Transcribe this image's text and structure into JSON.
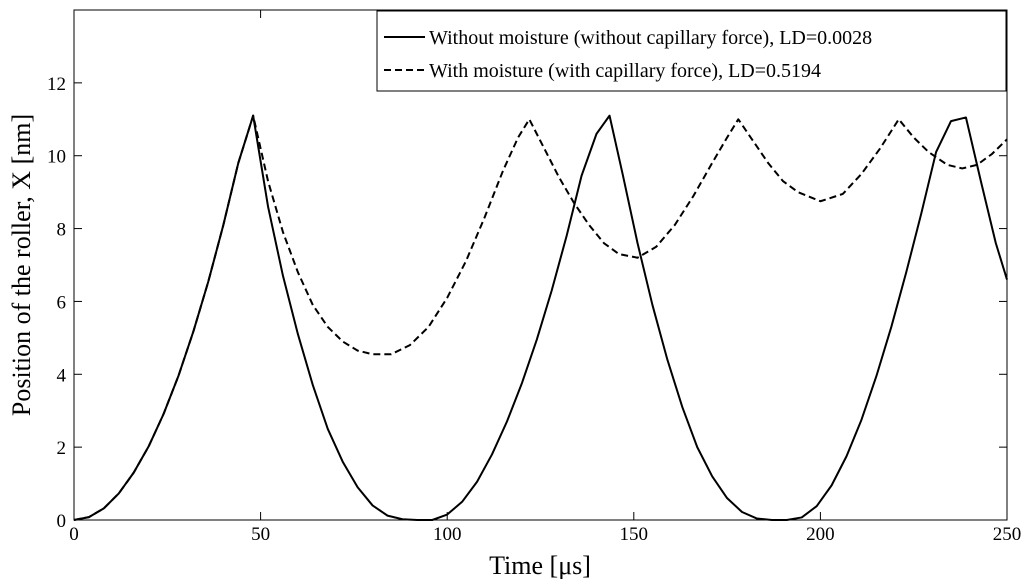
{
  "chart_data": {
    "type": "line",
    "xlabel": "Time [μs]",
    "ylabel": "Position of the roller, X [nm]",
    "xlim": [
      0,
      250
    ],
    "ylim": [
      0,
      14
    ],
    "xticks": [
      "0",
      "50",
      "100",
      "150",
      "200",
      "250"
    ],
    "yticks": [
      "0",
      "2",
      "4",
      "6",
      "8",
      "10",
      "12"
    ],
    "grid": false,
    "legend_position": "top-right",
    "series": [
      {
        "name": "Without moisture (without capillary force), LD=0.0028",
        "style": "solid",
        "color": "#000000",
        "x": [
          0,
          4,
          8,
          12,
          16,
          20,
          24,
          28,
          32,
          36,
          40,
          44,
          48,
          52,
          56,
          60,
          64,
          68,
          72,
          76,
          80,
          84,
          88,
          92,
          96,
          100,
          104,
          108,
          112,
          116,
          120,
          124,
          128,
          132,
          136,
          140,
          143.5,
          147,
          151,
          155,
          159,
          163,
          167,
          171,
          175,
          179,
          183,
          187,
          191,
          195,
          199,
          203,
          207,
          211,
          215,
          219,
          223,
          227,
          231,
          235,
          239,
          243,
          247,
          250
        ],
        "y": [
          0.0,
          0.08,
          0.32,
          0.73,
          1.3,
          2.02,
          2.91,
          3.96,
          5.18,
          6.55,
          8.09,
          9.79,
          11.1,
          8.6,
          6.7,
          5.1,
          3.7,
          2.5,
          1.6,
          0.9,
          0.4,
          0.12,
          0.02,
          0.0,
          0.0,
          0.15,
          0.5,
          1.05,
          1.8,
          2.7,
          3.75,
          4.95,
          6.3,
          7.8,
          9.45,
          10.6,
          11.1,
          9.5,
          7.6,
          5.9,
          4.4,
          3.1,
          2.0,
          1.2,
          0.6,
          0.22,
          0.04,
          0.0,
          0.0,
          0.07,
          0.38,
          0.95,
          1.75,
          2.75,
          3.95,
          5.3,
          6.8,
          8.4,
          10.1,
          10.95,
          11.05,
          9.3,
          7.6,
          6.6
        ]
      },
      {
        "name": "With moisture (with capillary force), LD=0.5194",
        "style": "dashed",
        "color": "#000000",
        "x": [
          0,
          4,
          8,
          12,
          16,
          20,
          24,
          28,
          32,
          36,
          40,
          44,
          48,
          52,
          56,
          60,
          64,
          68,
          72,
          76,
          80,
          85,
          90,
          95,
          100,
          105,
          110,
          115,
          119,
          122,
          126,
          130,
          134,
          138,
          142,
          146,
          151,
          156,
          161,
          166,
          171,
          175,
          178,
          182,
          186,
          190,
          194,
          200,
          206,
          211,
          216,
          221,
          225,
          229,
          234,
          238,
          242,
          246,
          250
        ],
        "y": [
          0.0,
          0.08,
          0.32,
          0.73,
          1.3,
          2.02,
          2.91,
          3.96,
          5.18,
          6.55,
          8.09,
          9.79,
          11.1,
          9.3,
          7.9,
          6.8,
          5.9,
          5.3,
          4.9,
          4.65,
          4.55,
          4.55,
          4.8,
          5.3,
          6.1,
          7.1,
          8.3,
          9.6,
          10.5,
          11.0,
          10.2,
          9.4,
          8.7,
          8.1,
          7.6,
          7.3,
          7.2,
          7.5,
          8.1,
          8.9,
          9.8,
          10.5,
          11.0,
          10.4,
          9.8,
          9.3,
          9.0,
          8.75,
          8.95,
          9.5,
          10.2,
          11.0,
          10.5,
          10.1,
          9.75,
          9.65,
          9.75,
          10.05,
          10.45
        ]
      }
    ]
  }
}
